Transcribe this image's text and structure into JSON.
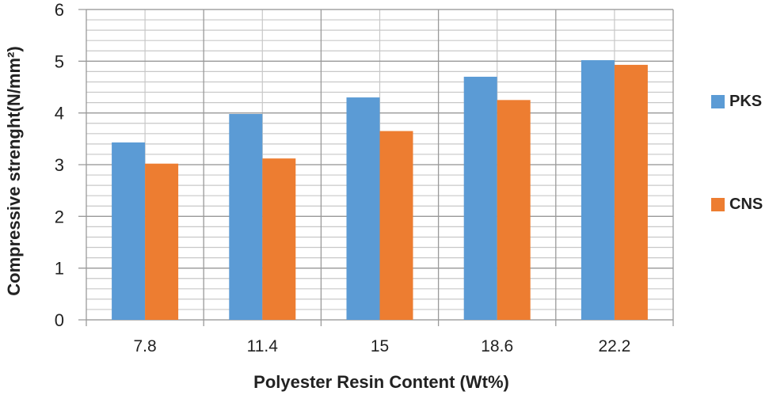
{
  "chart_data": {
    "type": "bar",
    "title": "",
    "xlabel": "Polyester Resin Content (Wt%)",
    "ylabel": "Compressive strenght(N/mm²)",
    "categories": [
      "7.8",
      "11.4",
      "15",
      "18.6",
      "22.2"
    ],
    "series": [
      {
        "name": "PKS",
        "color": "#5B9BD5",
        "values": [
          3.43,
          3.98,
          4.3,
          4.7,
          5.02
        ]
      },
      {
        "name": "CNS",
        "color": "#ED7D31",
        "values": [
          3.02,
          3.12,
          3.65,
          4.25,
          4.93
        ]
      }
    ],
    "ylim": [
      0,
      6
    ],
    "yticks": [
      0,
      1,
      2,
      3,
      4,
      5,
      6
    ],
    "minor_step": 0.2,
    "grid": true,
    "legend_position": "right"
  }
}
